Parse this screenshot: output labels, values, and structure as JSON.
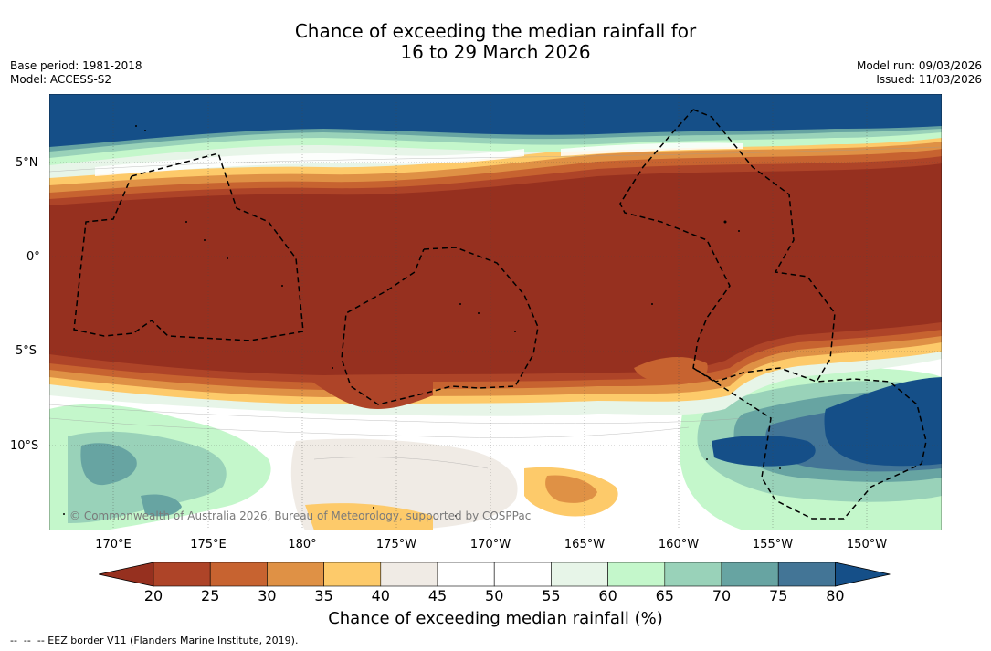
{
  "header": {
    "title_line1": "Chance of exceeding the median rainfall for",
    "title_line2": "16 to 29 March 2026",
    "base_period": "Base period: 1981-2018",
    "model": "Model: ACCESS-S2",
    "model_run": "Model run: 09/03/2026",
    "issued": "Issued: 11/03/2026"
  },
  "map": {
    "latitude_labels": [
      "5°N",
      "0°",
      "5°S",
      "10°S"
    ],
    "longitude_labels": [
      "170°E",
      "175°E",
      "180°",
      "175°W",
      "170°W",
      "165°W",
      "160°W",
      "155°W",
      "150°W"
    ],
    "copyright": "© Commonwealth of Australia 2026, Bureau of Meteorology, supported by COSPPac"
  },
  "colorbar": {
    "tick_labels": [
      "20",
      "25",
      "30",
      "35",
      "40",
      "45",
      "50",
      "55",
      "60",
      "65",
      "70",
      "75",
      "80"
    ],
    "colors": [
      "#96301f",
      "#ae4428",
      "#c76330",
      "#df9145",
      "#fdca6a",
      "#f0ebe5",
      "#ffffff",
      "#ffffff",
      "#e7f5e8",
      "#c4f7cb",
      "#99d2b9",
      "#67a4a2",
      "#437596",
      "#154f88"
    ],
    "title": "Chance of exceeding median rainfall (%)"
  },
  "legend": {
    "eez_note": "--  --  -- EEZ border V11 (Flanders Marine Institute, 2019)."
  }
}
